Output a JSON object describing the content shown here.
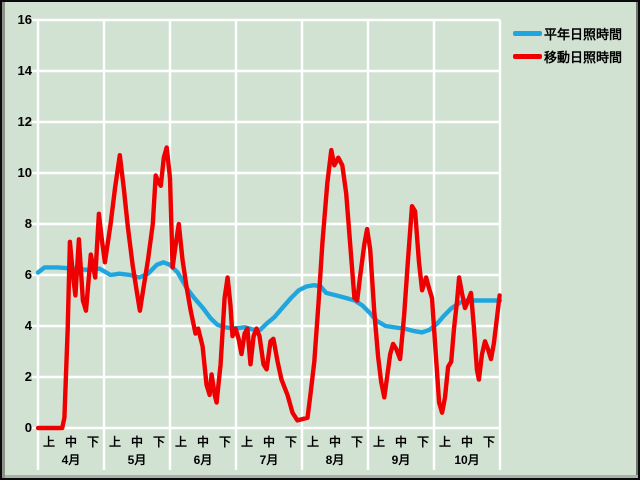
{
  "chart": {
    "background_color": "#d2e2d2",
    "grid_color": "#ffffff",
    "text_color": "#000000",
    "legend": [
      {
        "label": "平年日照時間",
        "color": "#1fa6de"
      },
      {
        "label": "移動日照時間",
        "color": "#ef0000"
      }
    ],
    "y_axis": {
      "min": 0,
      "max": 16,
      "step": 2,
      "tick_labels": [
        "0",
        "2",
        "4",
        "6",
        "8",
        "10",
        "12",
        "14",
        "16"
      ]
    },
    "x_axis": {
      "months": [
        "4月",
        "5月",
        "6月",
        "7月",
        "8月",
        "9月",
        "10月"
      ],
      "periods": [
        "上",
        "中",
        "下"
      ]
    }
  },
  "chart_data": {
    "type": "line",
    "title": "",
    "xlabel": "",
    "ylabel": "",
    "ylim": [
      0,
      16
    ],
    "grid": true,
    "legend_position": "top-right",
    "x_description": "day index from April 1 (0 to 210, 30 units per month, months 4月-10月 each split into 上/中/下)",
    "series": [
      {
        "name": "平年日照時間",
        "color": "#1fa6de",
        "points": [
          [
            0,
            6.1
          ],
          [
            3,
            6.3
          ],
          [
            9,
            6.3
          ],
          [
            16,
            6.25
          ],
          [
            23,
            6.2
          ],
          [
            28,
            6.25
          ],
          [
            33,
            6.0
          ],
          [
            37,
            6.05
          ],
          [
            42,
            6.0
          ],
          [
            46,
            5.9
          ],
          [
            50,
            6.05
          ],
          [
            54,
            6.4
          ],
          [
            57,
            6.5
          ],
          [
            60,
            6.4
          ],
          [
            63.5,
            6.1
          ],
          [
            67.5,
            5.5
          ],
          [
            71,
            5.1
          ],
          [
            75,
            4.7
          ],
          [
            78.5,
            4.3
          ],
          [
            81.5,
            4.05
          ],
          [
            85,
            3.95
          ],
          [
            89,
            3.9
          ],
          [
            94,
            3.95
          ],
          [
            98,
            3.85
          ],
          [
            101,
            3.85
          ],
          [
            104,
            4.1
          ],
          [
            107.5,
            4.35
          ],
          [
            111,
            4.7
          ],
          [
            115,
            5.1
          ],
          [
            118.5,
            5.4
          ],
          [
            122,
            5.55
          ],
          [
            125.5,
            5.6
          ],
          [
            128.5,
            5.55
          ],
          [
            131,
            5.3
          ],
          [
            135.5,
            5.2
          ],
          [
            140,
            5.1
          ],
          [
            144,
            5.0
          ],
          [
            147.5,
            4.8
          ],
          [
            151,
            4.5
          ],
          [
            154,
            4.2
          ],
          [
            158,
            4.0
          ],
          [
            162,
            3.95
          ],
          [
            166.5,
            3.9
          ],
          [
            171,
            3.8
          ],
          [
            174.5,
            3.75
          ],
          [
            178,
            3.85
          ],
          [
            181.5,
            4.1
          ],
          [
            184.5,
            4.4
          ],
          [
            188,
            4.7
          ],
          [
            191.5,
            4.9
          ],
          [
            194.5,
            5.0
          ],
          [
            210,
            5.0
          ]
        ]
      },
      {
        "name": "移動日照時間",
        "color": "#ef0000",
        "points": [
          [
            0,
            0
          ],
          [
            11,
            0
          ],
          [
            12,
            0.4
          ],
          [
            13.5,
            3.9
          ],
          [
            14.5,
            7.3
          ],
          [
            16,
            5.9
          ],
          [
            17,
            5.2
          ],
          [
            18.6,
            7.4
          ],
          [
            20.4,
            5.0
          ],
          [
            21.8,
            4.6
          ],
          [
            24,
            6.8
          ],
          [
            26,
            5.9
          ],
          [
            27.7,
            8.4
          ],
          [
            29,
            7.4
          ],
          [
            30.4,
            6.5
          ],
          [
            33,
            8.0
          ],
          [
            35,
            9.4
          ],
          [
            37.2,
            10.7
          ],
          [
            39,
            9.4
          ],
          [
            40.8,
            7.9
          ],
          [
            43,
            6.4
          ],
          [
            45,
            5.3
          ],
          [
            46.3,
            4.6
          ],
          [
            47.6,
            5.3
          ],
          [
            50,
            6.6
          ],
          [
            52.2,
            8.0
          ],
          [
            53.5,
            9.9
          ],
          [
            55,
            9.6
          ],
          [
            55.8,
            9.5
          ],
          [
            57.2,
            10.6
          ],
          [
            58.5,
            11.0
          ],
          [
            60,
            9.8
          ],
          [
            61.2,
            6.3
          ],
          [
            62.6,
            7.2
          ],
          [
            64,
            8.0
          ],
          [
            65.7,
            6.6
          ],
          [
            67.6,
            5.5
          ],
          [
            69.4,
            4.6
          ],
          [
            71.6,
            3.7
          ],
          [
            72.8,
            3.9
          ],
          [
            74.8,
            3.2
          ],
          [
            76.6,
            1.7
          ],
          [
            78,
            1.3
          ],
          [
            78.9,
            2.1
          ],
          [
            80.3,
            1.3
          ],
          [
            81.2,
            1.0
          ],
          [
            83,
            2.5
          ],
          [
            84.8,
            5.1
          ],
          [
            86.2,
            5.9
          ],
          [
            87.5,
            4.8
          ],
          [
            88.4,
            3.6
          ],
          [
            89.8,
            3.9
          ],
          [
            91.2,
            3.5
          ],
          [
            92.5,
            2.9
          ],
          [
            93.9,
            3.7
          ],
          [
            95.2,
            3.9
          ],
          [
            96.6,
            2.5
          ],
          [
            98,
            3.6
          ],
          [
            99.3,
            3.9
          ],
          [
            100.7,
            3.6
          ],
          [
            102.5,
            2.5
          ],
          [
            103.9,
            2.3
          ],
          [
            105.7,
            3.4
          ],
          [
            107,
            3.5
          ],
          [
            108.9,
            2.6
          ],
          [
            110.7,
            1.9
          ],
          [
            113.4,
            1.3
          ],
          [
            115.7,
            0.6
          ],
          [
            117.9,
            0.3
          ],
          [
            122.5,
            0.4
          ],
          [
            123.8,
            1.3
          ],
          [
            125.6,
            2.6
          ],
          [
            127.5,
            4.9
          ],
          [
            129.3,
            7.3
          ],
          [
            131.5,
            9.6
          ],
          [
            133.3,
            10.9
          ],
          [
            134.7,
            10.3
          ],
          [
            136.5,
            10.6
          ],
          [
            138.3,
            10.3
          ],
          [
            140.1,
            9.2
          ],
          [
            141.9,
            7.2
          ],
          [
            143.8,
            5.1
          ],
          [
            145.1,
            5.0
          ],
          [
            146.5,
            6.0
          ],
          [
            148.3,
            7.2
          ],
          [
            149.6,
            7.8
          ],
          [
            151,
            7.0
          ],
          [
            152.8,
            4.6
          ],
          [
            154.6,
            2.8
          ],
          [
            156,
            1.8
          ],
          [
            157.4,
            1.2
          ],
          [
            158.7,
            2.0
          ],
          [
            160.1,
            2.9
          ],
          [
            161.4,
            3.3
          ],
          [
            162.8,
            3.1
          ],
          [
            164.6,
            2.7
          ],
          [
            166.4,
            4.4
          ],
          [
            168.2,
            6.6
          ],
          [
            170,
            8.7
          ],
          [
            171.4,
            8.5
          ],
          [
            173.2,
            6.5
          ],
          [
            174.6,
            5.4
          ],
          [
            176.4,
            5.9
          ],
          [
            177.7,
            5.5
          ],
          [
            179.1,
            5.1
          ],
          [
            180.5,
            3.3
          ],
          [
            182.3,
            1.0
          ],
          [
            183.7,
            0.6
          ],
          [
            185,
            1.2
          ],
          [
            186.4,
            2.4
          ],
          [
            187.8,
            2.6
          ],
          [
            189.1,
            3.9
          ],
          [
            190.5,
            5.0
          ],
          [
            191.4,
            5.9
          ],
          [
            192.7,
            5.3
          ],
          [
            194.1,
            4.7
          ],
          [
            195.5,
            5.0
          ],
          [
            196.8,
            5.3
          ],
          [
            198.2,
            3.9
          ],
          [
            199.5,
            2.3
          ],
          [
            200.4,
            1.9
          ],
          [
            201.8,
            2.9
          ],
          [
            203.2,
            3.4
          ],
          [
            204.5,
            3.1
          ],
          [
            205.9,
            2.7
          ],
          [
            207.2,
            3.3
          ],
          [
            208.6,
            4.3
          ],
          [
            209.8,
            5.2
          ]
        ]
      }
    ]
  }
}
